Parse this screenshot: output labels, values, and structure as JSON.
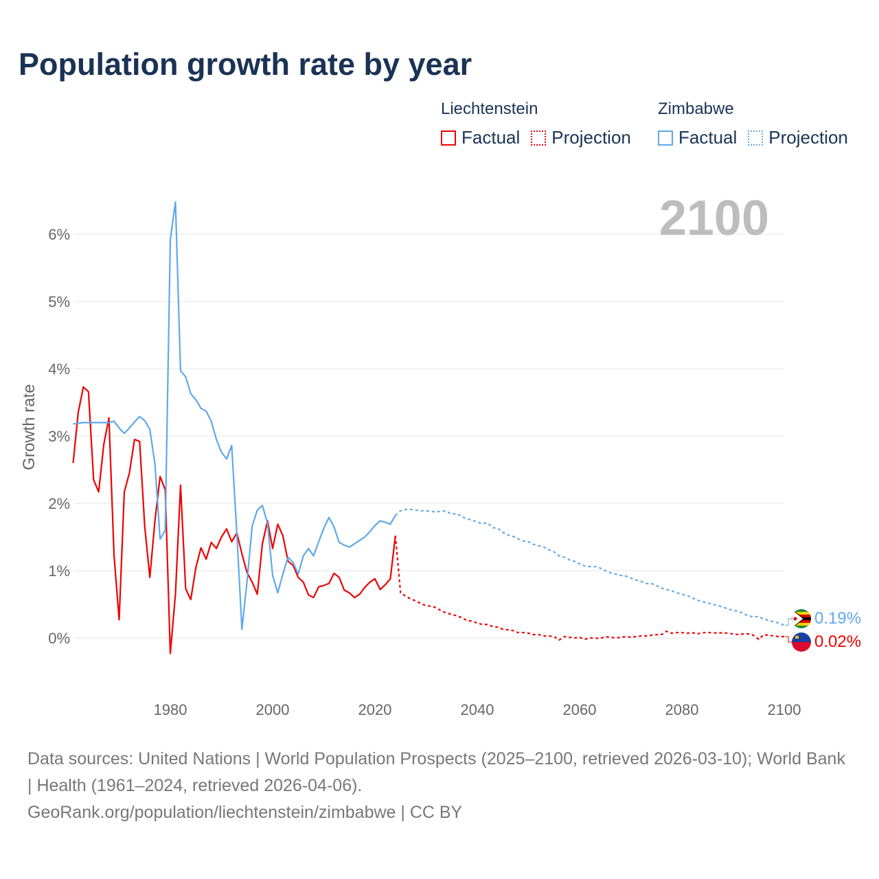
{
  "title": "Population growth rate by year",
  "legend": {
    "groups": [
      {
        "country": "Liechtenstein",
        "factual": "Factual",
        "projection": "Projection",
        "color": "#ee0000"
      },
      {
        "country": "Zimbabwe",
        "factual": "Factual",
        "projection": "Projection",
        "color": "#5fa8ea"
      }
    ]
  },
  "year_watermark": "2100",
  "end_labels": {
    "zimbabwe": "0.19%",
    "liechtenstein": "0.02%"
  },
  "footer": {
    "sources": "Data sources: United Nations | World Population Prospects (2025–2100, retrieved 2026-03-10); World Bank | Health (1961–2024, retrieved 2026-04-06).",
    "link": "GeoRank.org/population/liechtenstein/zimbabwe | CC BY"
  },
  "chart_data": {
    "type": "line",
    "title": "Population growth rate by year",
    "xlabel": "",
    "ylabel": "Growth rate",
    "xlim": [
      1961,
      2100
    ],
    "ylim": [
      -0.8,
      6.6
    ],
    "x_ticks": [
      1980,
      2000,
      2020,
      2040,
      2060,
      2080,
      2100
    ],
    "y_ticks": [
      0,
      1,
      2,
      3,
      4,
      5,
      6
    ],
    "y_tick_labels": [
      "0%",
      "1%",
      "2%",
      "3%",
      "4%",
      "5%",
      "6%"
    ],
    "grid": true,
    "legend_position": "top-right",
    "series": [
      {
        "name": "Liechtenstein",
        "color": "#ee0000",
        "factual_start": 1961,
        "factual": [
          2.6,
          3.35,
          3.73,
          3.66,
          2.35,
          2.17,
          2.88,
          3.27,
          1.22,
          0.27,
          2.17,
          2.45,
          2.95,
          2.92,
          1.65,
          0.9,
          1.75,
          2.4,
          2.2,
          -0.23,
          0.65,
          2.27,
          0.73,
          0.57,
          1.05,
          1.34,
          1.17,
          1.42,
          1.33,
          1.5,
          1.62,
          1.43,
          1.56,
          1.25,
          0.97,
          0.83,
          0.65,
          1.4,
          1.74,
          1.33,
          1.69,
          1.52,
          1.14,
          1.08,
          0.9,
          0.83,
          0.64,
          0.6,
          0.76,
          0.78,
          0.81,
          0.96,
          0.9,
          0.71,
          0.67,
          0.6,
          0.65,
          0.75,
          0.83,
          0.88,
          0.72,
          0.79,
          0.88,
          1.52
        ],
        "projection_start": 2025,
        "projection": [
          0.67,
          0.62,
          0.58,
          0.55,
          0.51,
          0.48,
          0.47,
          0.45,
          0.4,
          0.37,
          0.35,
          0.33,
          0.3,
          0.26,
          0.25,
          0.22,
          0.2,
          0.2,
          0.17,
          0.16,
          0.13,
          0.12,
          0.11,
          0.08,
          0.08,
          0.07,
          0.05,
          0.05,
          0.03,
          0.03,
          0.02,
          -0.03,
          0.02,
          0.01,
          0.0,
          0.01,
          -0.02,
          0.0,
          0.0,
          -0.01,
          0.02,
          0.01,
          0.0,
          0.01,
          0.02,
          0.01,
          0.02,
          0.03,
          0.03,
          0.04,
          0.05,
          0.05,
          0.1,
          0.07,
          0.08,
          0.08,
          0.07,
          0.08,
          0.06,
          0.08,
          0.08,
          0.08,
          0.07,
          0.08,
          0.07,
          0.06,
          0.05,
          0.06,
          0.06,
          0.04,
          -0.02,
          0.05,
          0.04,
          0.03,
          0.02,
          0.02
        ]
      },
      {
        "name": "Zimbabwe",
        "color": "#5fa8ea",
        "factual_start": 1961,
        "factual": [
          3.18,
          3.19,
          3.2,
          3.2,
          3.2,
          3.2,
          3.2,
          3.2,
          3.22,
          3.12,
          3.04,
          3.12,
          3.21,
          3.29,
          3.23,
          3.1,
          2.58,
          1.47,
          1.6,
          5.92,
          6.48,
          3.97,
          3.88,
          3.63,
          3.54,
          3.41,
          3.37,
          3.22,
          2.95,
          2.76,
          2.66,
          2.86,
          1.55,
          0.13,
          0.85,
          1.66,
          1.9,
          1.97,
          1.7,
          0.93,
          0.67,
          0.95,
          1.2,
          1.12,
          0.95,
          1.22,
          1.33,
          1.22,
          1.43,
          1.63,
          1.79,
          1.65,
          1.42,
          1.38,
          1.35,
          1.4,
          1.45,
          1.5,
          1.58,
          1.67,
          1.74,
          1.72,
          1.69,
          1.82
        ],
        "projection_start": 2025,
        "projection": [
          1.89,
          1.91,
          1.91,
          1.9,
          1.89,
          1.89,
          1.88,
          1.87,
          1.89,
          1.88,
          1.84,
          1.85,
          1.8,
          1.77,
          1.75,
          1.72,
          1.7,
          1.71,
          1.64,
          1.63,
          1.57,
          1.53,
          1.51,
          1.47,
          1.44,
          1.43,
          1.39,
          1.37,
          1.35,
          1.31,
          1.28,
          1.22,
          1.2,
          1.16,
          1.14,
          1.1,
          1.07,
          1.06,
          1.06,
          1.04,
          1.0,
          0.97,
          0.95,
          0.93,
          0.92,
          0.89,
          0.86,
          0.84,
          0.81,
          0.81,
          0.78,
          0.74,
          0.72,
          0.7,
          0.67,
          0.65,
          0.63,
          0.6,
          0.56,
          0.54,
          0.52,
          0.5,
          0.48,
          0.46,
          0.43,
          0.41,
          0.4,
          0.36,
          0.33,
          0.31,
          0.32,
          0.28,
          0.26,
          0.24,
          0.22,
          0.19
        ]
      }
    ]
  }
}
